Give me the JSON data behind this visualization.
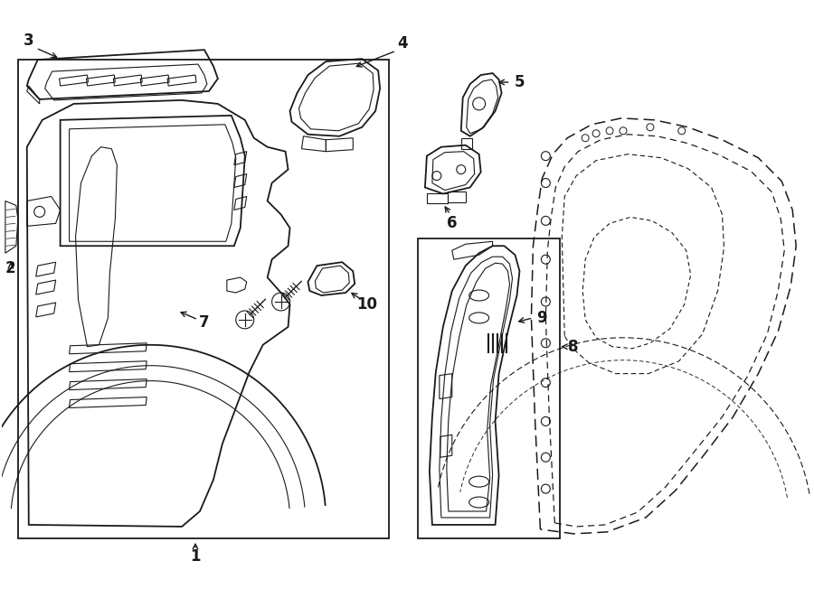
{
  "background_color": "#ffffff",
  "line_color": "#1a1a1a",
  "fig_width": 9.0,
  "fig_height": 6.62,
  "dpi": 100,
  "lw_main": 1.3,
  "lw_thin": 0.8,
  "lw_dash": 1.1,
  "font_size": 12,
  "font_weight": "bold"
}
